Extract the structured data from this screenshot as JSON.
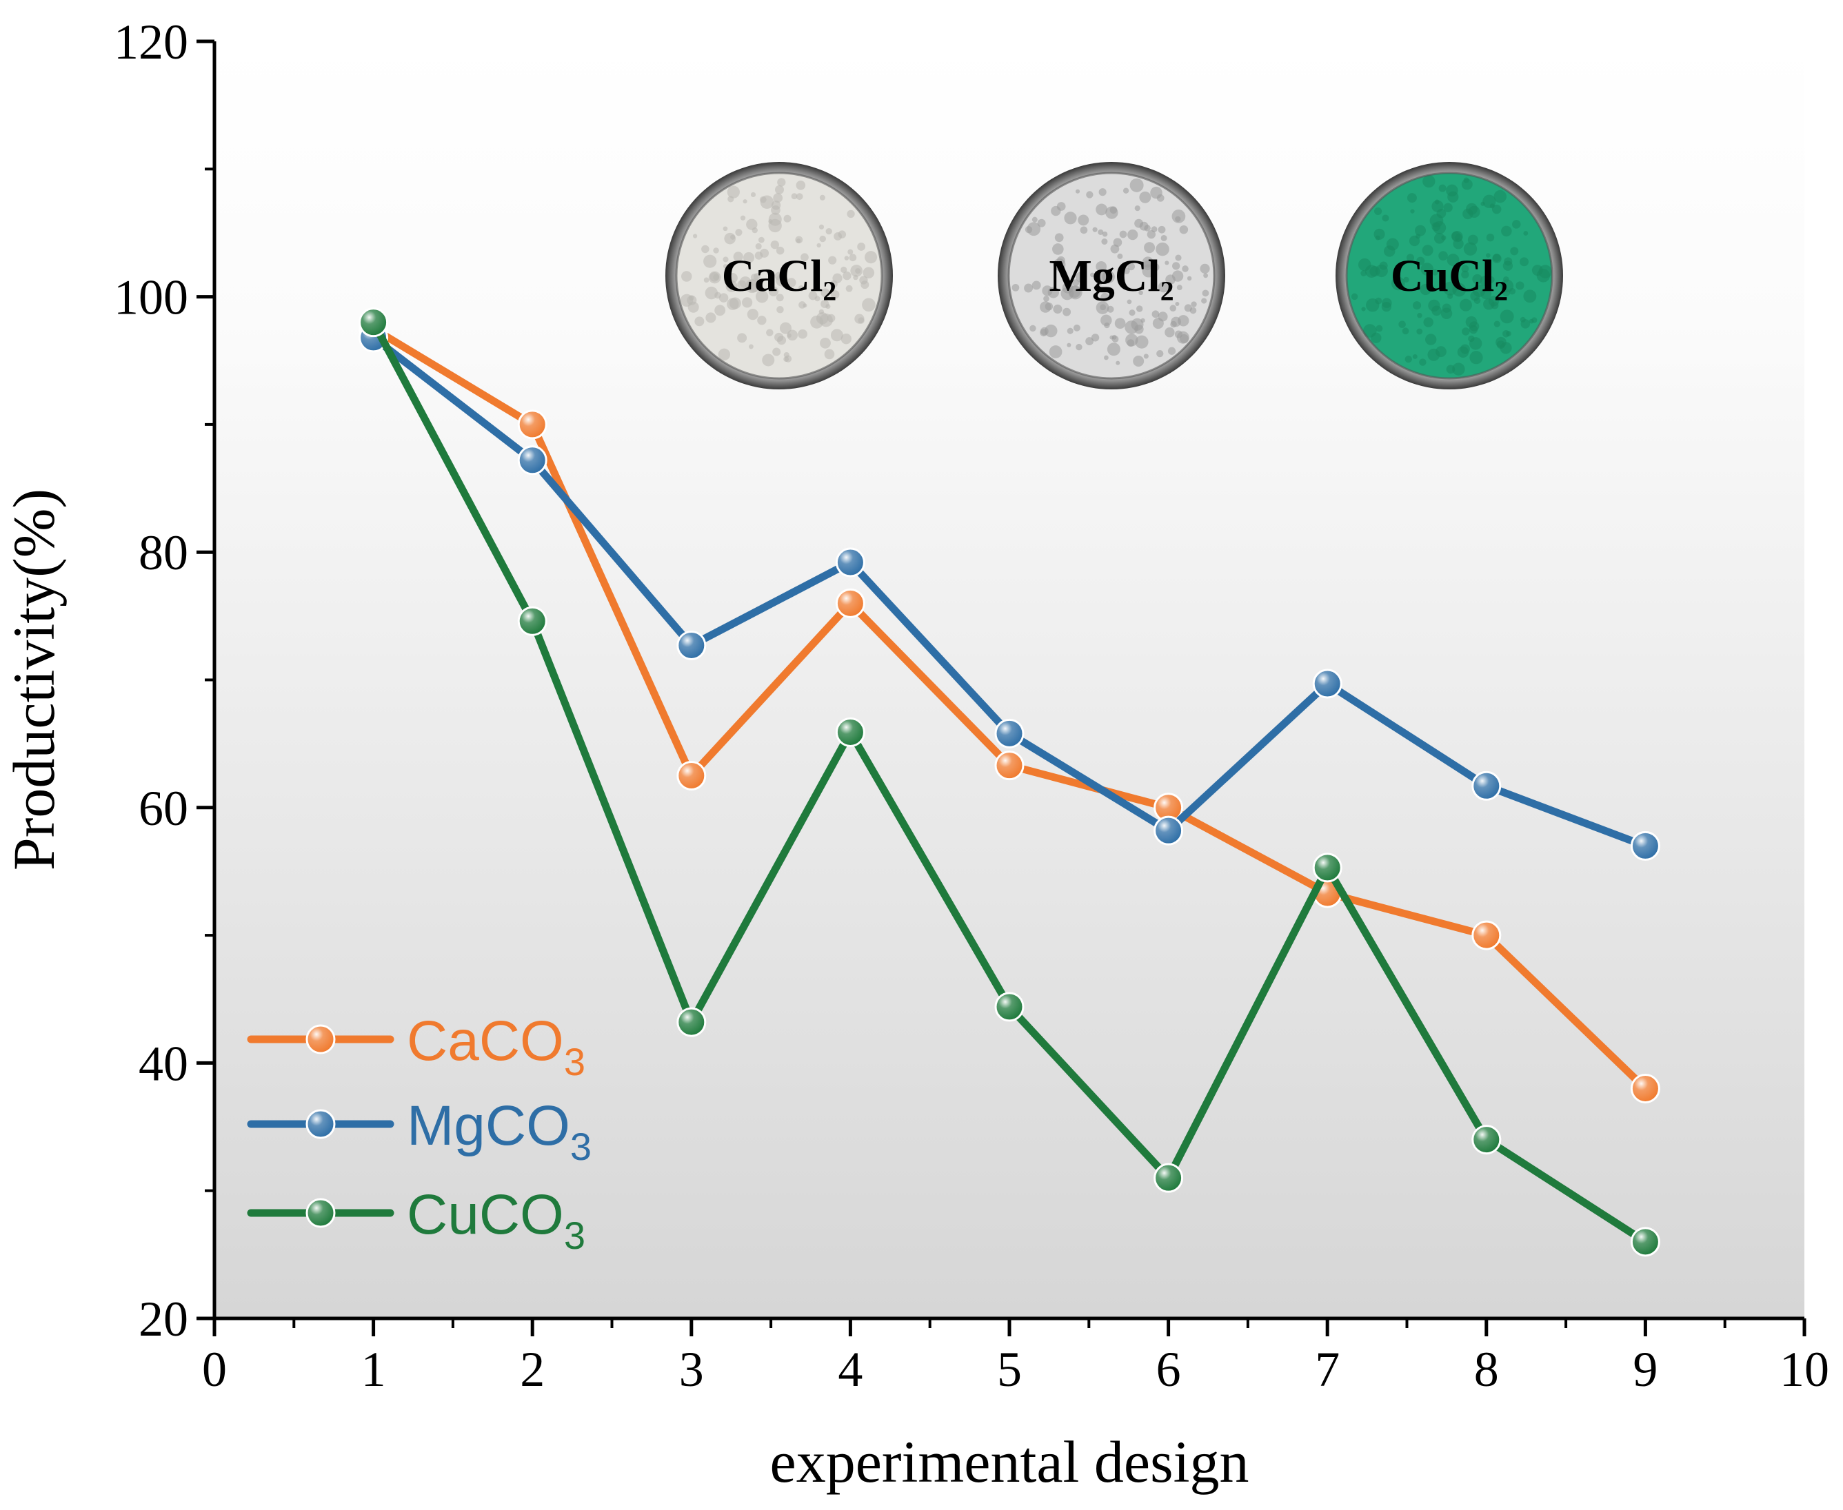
{
  "chart_data": {
    "type": "line",
    "xlabel": "experimental design",
    "ylabel": "Productivity(%)",
    "xlim": [
      0,
      10
    ],
    "ylim": [
      20,
      120
    ],
    "xticks": [
      0,
      1,
      2,
      3,
      4,
      5,
      6,
      7,
      8,
      9,
      10
    ],
    "yticks": [
      20,
      40,
      60,
      80,
      100,
      120
    ],
    "x": [
      1,
      2,
      3,
      4,
      5,
      6,
      7,
      8,
      9
    ],
    "series": [
      {
        "id": "caco3",
        "name": "CaCO",
        "subscript": "3",
        "color": "#F07A2E",
        "values": [
          97.5,
          90.0,
          62.5,
          76.0,
          63.3,
          60.0,
          53.3,
          50.0,
          38.0
        ]
      },
      {
        "id": "mgco3",
        "name": "MgCO",
        "subscript": "3",
        "color": "#2E6EA6",
        "values": [
          96.8,
          87.2,
          72.7,
          79.2,
          65.8,
          58.2,
          69.7,
          61.7,
          57.0
        ]
      },
      {
        "id": "cuco3",
        "name": "CuCO",
        "subscript": "3",
        "color": "#1F7A3C",
        "values": [
          98.0,
          74.6,
          43.2,
          65.9,
          44.4,
          31.0,
          55.3,
          34.0,
          26.0
        ]
      }
    ],
    "legend_position": "bottom-left",
    "background": "gradient white to light gray",
    "insets": [
      {
        "id": "cacl2",
        "label": "CaCl₂",
        "fill": "#e4e3de",
        "speckle": "#b9b8b2"
      },
      {
        "id": "mgcl2",
        "label": "MgCl₂",
        "fill": "#dcdcdc",
        "speckle": "#9a9a9a"
      },
      {
        "id": "cucl2",
        "label": "CuCl₂",
        "fill": "#22a77a",
        "speckle": "#178a60"
      }
    ]
  }
}
